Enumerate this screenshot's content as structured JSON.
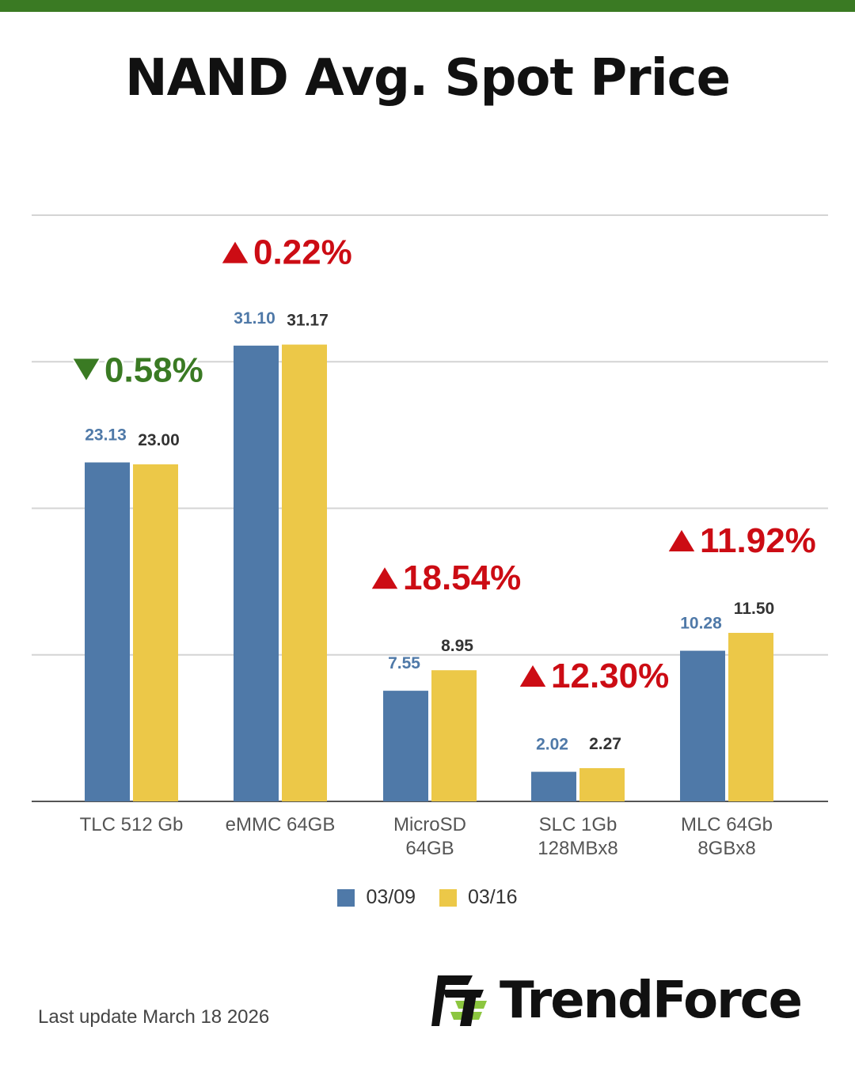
{
  "title": "NAND Avg. Spot Price",
  "colors": {
    "top_bar": "#3a7a23",
    "series_1": "#4f79a8",
    "series_2": "#ecc848",
    "up": "#cc0c14",
    "down": "#3a7a23",
    "gridline": "#d4d4d4",
    "label_series_1": "#4f79a8",
    "label_series_2": "#333333"
  },
  "chart_data": {
    "type": "bar",
    "title": "NAND Avg. Spot Price",
    "categories": [
      [
        "TLC 512 Gb"
      ],
      [
        "eMMC 64GB"
      ],
      [
        "MicroSD",
        "64GB"
      ],
      [
        "SLC 1Gb",
        "128MBx8"
      ],
      [
        "MLC 64Gb",
        "8GBx8"
      ]
    ],
    "series": [
      {
        "name": "03/09",
        "values": [
          23.13,
          31.1,
          7.55,
          2.02,
          10.28
        ],
        "labels": [
          "23.13",
          "31.10",
          "7.55",
          "2.02",
          "10.28"
        ]
      },
      {
        "name": "03/16",
        "values": [
          23.0,
          31.17,
          8.95,
          2.27,
          11.5
        ],
        "labels": [
          "23.00",
          "31.17",
          "8.95",
          "2.27",
          "11.50"
        ]
      }
    ],
    "changes": [
      {
        "text": "0.58%",
        "direction": "down"
      },
      {
        "text": "0.22%",
        "direction": "up"
      },
      {
        "text": "18.54%",
        "direction": "up"
      },
      {
        "text": "12.30%",
        "direction": "up"
      },
      {
        "text": "11.92%",
        "direction": "up"
      }
    ],
    "ylim": [
      0,
      40
    ],
    "grid": true,
    "legend": "bottom-center",
    "xlabel": "",
    "ylabel": ""
  },
  "legend": [
    {
      "label": "03/09",
      "color": "#4f79a8"
    },
    {
      "label": "03/16",
      "color": "#ecc848"
    }
  ],
  "footer": {
    "last_update": "Last update March 18  2026"
  },
  "logo": {
    "text": "TrendForce",
    "icon": "trendforce-logo-icon"
  }
}
